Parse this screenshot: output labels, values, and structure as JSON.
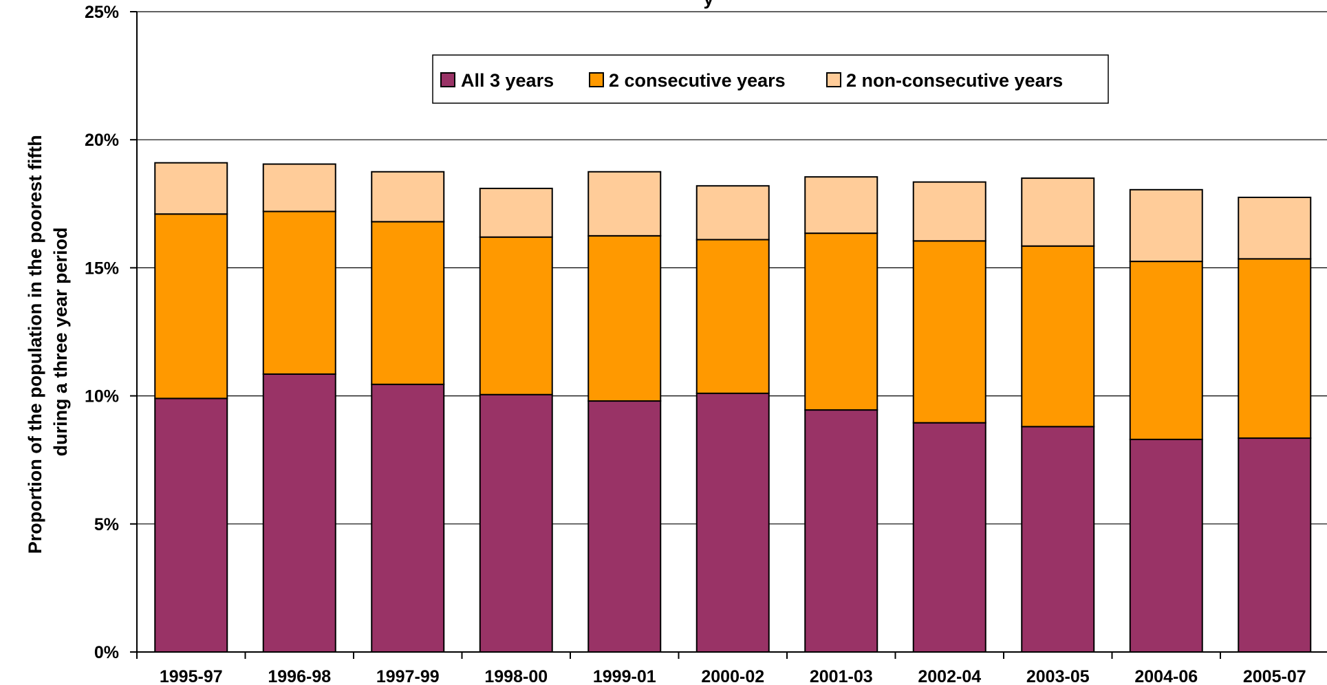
{
  "chart_data": {
    "type": "bar",
    "stacked": true,
    "title": "y",
    "xlabel": "",
    "ylabel": "Proportion of the population in the poorest fifth during a three year period",
    "ylabel_lines": [
      "Proportion of the population in the poorest fifth",
      "during a three year period"
    ],
    "ylim": [
      0,
      25
    ],
    "yticks": [
      0,
      5,
      10,
      15,
      20,
      25
    ],
    "ytick_labels": [
      "0%",
      "5%",
      "10%",
      "15%",
      "20%",
      "25%"
    ],
    "grid": true,
    "legend_position": "top-center",
    "categories": [
      "1995-97",
      "1996-98",
      "1997-99",
      "1998-00",
      "1999-01",
      "2000-02",
      "2001-03",
      "2002-04",
      "2003-05",
      "2004-06",
      "2005-07"
    ],
    "series": [
      {
        "name": "All 3 years",
        "color": "#993366",
        "values": [
          9.9,
          10.85,
          10.45,
          10.05,
          9.8,
          10.1,
          9.45,
          8.95,
          8.8,
          8.3,
          8.35
        ]
      },
      {
        "name": "2 consecutive years",
        "color": "#FF9900",
        "values": [
          7.2,
          6.35,
          6.35,
          6.15,
          6.45,
          6.0,
          6.9,
          7.1,
          7.05,
          6.95,
          7.0
        ]
      },
      {
        "name": "2 non-consecutive years",
        "color": "#FFCC99",
        "values": [
          2.0,
          1.85,
          1.95,
          1.9,
          2.5,
          2.1,
          2.2,
          2.3,
          2.65,
          2.8,
          2.4
        ]
      }
    ]
  }
}
